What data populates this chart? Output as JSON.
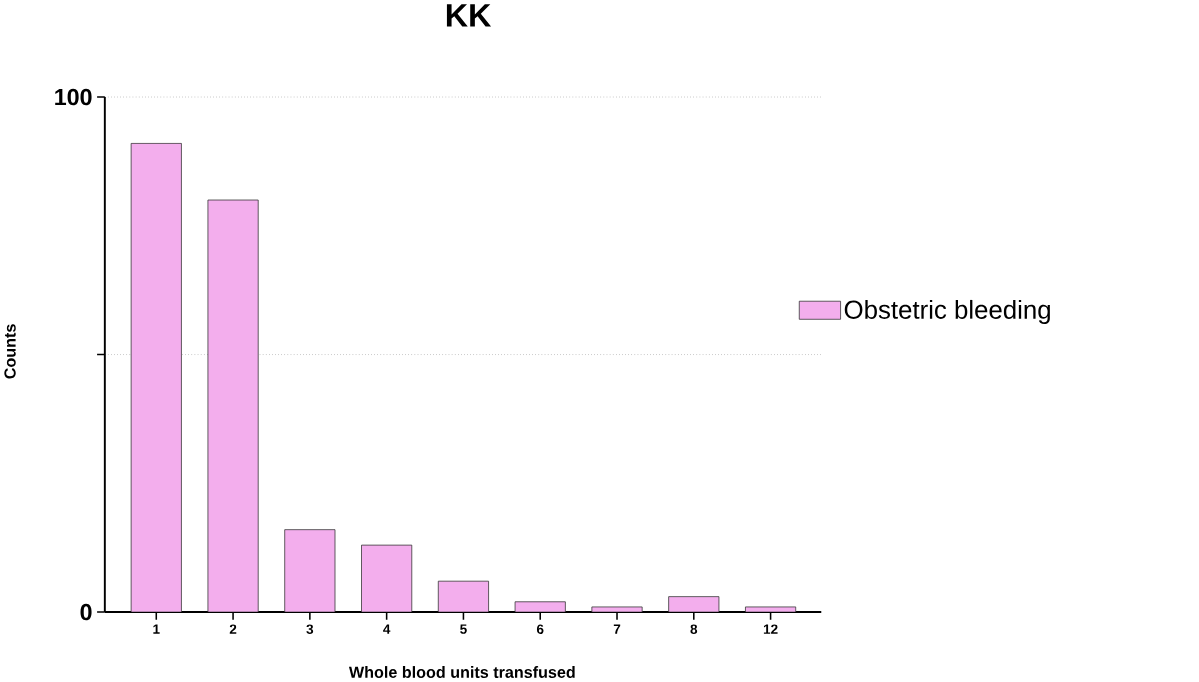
{
  "chart_data": {
    "type": "bar",
    "title": "KK",
    "xlabel": "Whole blood units transfused",
    "ylabel": "Counts",
    "categories": [
      "1",
      "2",
      "3",
      "4",
      "5",
      "6",
      "7",
      "8",
      "12"
    ],
    "series": [
      {
        "name": "Obstetric bleeding",
        "color": "#f3aeed",
        "values": [
          91,
          80,
          16,
          13,
          6,
          2,
          1,
          3,
          1
        ]
      }
    ],
    "ylim": [
      0,
      100
    ],
    "yticks": [
      0,
      {
        "value": 50,
        "label": null
      },
      100
    ],
    "grid": "y",
    "legend": "right"
  }
}
